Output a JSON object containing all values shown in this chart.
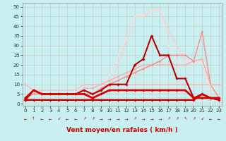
{
  "background_color": "#c8f0f0",
  "grid_color": "#aaaaaa",
  "xlabel": "Vent moyen/en rafales ( km/h )",
  "xlabel_color": "#cc0000",
  "xlabel_fontsize": 6.5,
  "xticks": [
    0,
    1,
    2,
    3,
    4,
    5,
    6,
    7,
    8,
    9,
    10,
    11,
    12,
    13,
    14,
    15,
    16,
    17,
    18,
    19,
    20,
    21,
    22,
    23
  ],
  "yticks": [
    0,
    5,
    10,
    15,
    20,
    25,
    30,
    35,
    40,
    45,
    50
  ],
  "ylim": [
    -1,
    52
  ],
  "xlim": [
    -0.3,
    23.3
  ],
  "series": [
    {
      "x": [
        0,
        1,
        2,
        3,
        4,
        5,
        6,
        7,
        8,
        9,
        10,
        11,
        12,
        13,
        14,
        15,
        16,
        17,
        18,
        19,
        20,
        21,
        22,
        23
      ],
      "y": [
        2,
        7,
        5,
        5,
        5,
        5,
        5,
        5,
        3,
        5,
        7,
        7,
        7,
        7,
        7,
        7,
        7,
        7,
        7,
        7,
        3,
        3,
        3,
        3
      ],
      "color": "#dd0000",
      "lw": 2.0,
      "marker": "D",
      "ms": 1.8,
      "zorder": 5
    },
    {
      "x": [
        0,
        1,
        2,
        3,
        4,
        5,
        6,
        7,
        8,
        9,
        10,
        11,
        12,
        13,
        14,
        15,
        16,
        17,
        18,
        19,
        20,
        21,
        22,
        23
      ],
      "y": [
        3,
        7,
        5,
        5,
        5,
        5,
        5,
        7,
        5,
        7,
        10,
        10,
        10,
        20,
        23,
        35,
        25,
        25,
        13,
        13,
        3,
        5,
        3,
        3
      ],
      "color": "#bb0000",
      "lw": 1.5,
      "marker": "D",
      "ms": 1.8,
      "zorder": 4
    },
    {
      "x": [
        0,
        1,
        2,
        3,
        4,
        5,
        6,
        7,
        8,
        9,
        10,
        11,
        12,
        13,
        14,
        15,
        16,
        17,
        18,
        19,
        20,
        21,
        22,
        23
      ],
      "y": [
        10,
        7,
        5,
        5,
        5,
        5,
        5,
        8,
        8,
        10,
        12,
        14,
        16,
        18,
        20,
        20,
        20,
        20,
        20,
        20,
        22,
        23,
        10,
        10
      ],
      "color": "#ffaaaa",
      "lw": 1.0,
      "marker": "D",
      "ms": 1.5,
      "zorder": 2
    },
    {
      "x": [
        0,
        1,
        2,
        3,
        4,
        5,
        6,
        7,
        8,
        9,
        10,
        11,
        12,
        13,
        14,
        15,
        16,
        17,
        18,
        19,
        20,
        21,
        22,
        23
      ],
      "y": [
        3,
        5,
        5,
        5,
        5,
        5,
        5,
        5,
        5,
        8,
        10,
        12,
        14,
        16,
        18,
        20,
        22,
        25,
        25,
        25,
        22,
        37,
        10,
        3
      ],
      "color": "#ff8888",
      "lw": 1.0,
      "marker": "D",
      "ms": 1.5,
      "zorder": 2
    },
    {
      "x": [
        0,
        1,
        2,
        3,
        4,
        5,
        6,
        7,
        8,
        9,
        10,
        11,
        12,
        13,
        14,
        15,
        16,
        17,
        18,
        19,
        20,
        21,
        22,
        23
      ],
      "y": [
        3,
        7,
        5,
        5,
        5,
        5,
        5,
        5,
        5,
        5,
        7,
        20,
        32,
        45,
        45,
        48,
        48,
        38,
        30,
        22,
        22,
        22,
        3,
        3
      ],
      "color": "#ffcccc",
      "lw": 1.0,
      "marker": "D",
      "ms": 1.5,
      "zorder": 1
    },
    {
      "x": [
        0,
        1,
        2,
        3,
        4,
        5,
        6,
        7,
        8,
        9,
        10,
        11,
        12,
        13,
        14,
        15,
        16,
        17,
        18,
        19,
        20,
        21,
        22,
        23
      ],
      "y": [
        3,
        7,
        5,
        5,
        5,
        5,
        5,
        5,
        5,
        8,
        15,
        25,
        33,
        45,
        46,
        48,
        48,
        30,
        22,
        22,
        22,
        22,
        3,
        3
      ],
      "color": "#ffdddd",
      "lw": 0.9,
      "marker": "D",
      "ms": 1.3,
      "zorder": 1
    },
    {
      "x": [
        0,
        1,
        2,
        3,
        4,
        5,
        6,
        7,
        8,
        9,
        10,
        11,
        12,
        13,
        14,
        15,
        16,
        17,
        18,
        19,
        20,
        21,
        22,
        23
      ],
      "y": [
        10,
        7,
        7,
        7,
        7,
        7,
        7,
        10,
        10,
        10,
        10,
        10,
        10,
        10,
        10,
        10,
        10,
        10,
        10,
        10,
        10,
        10,
        10,
        10
      ],
      "color": "#ffbbbb",
      "lw": 0.9,
      "marker": "D",
      "ms": 1.3,
      "zorder": 2
    },
    {
      "x": [
        0,
        1,
        2,
        3,
        4,
        5,
        6,
        7,
        8,
        9,
        10,
        11,
        12,
        13,
        14,
        15,
        16,
        17,
        18,
        19,
        20,
        21,
        22,
        23
      ],
      "y": [
        2,
        2,
        2,
        2,
        2,
        2,
        2,
        2,
        2,
        2,
        2,
        2,
        2,
        2,
        2,
        2,
        2,
        2,
        2,
        2,
        2,
        5,
        3,
        2
      ],
      "color": "#cc0000",
      "lw": 1.8,
      "marker": "D",
      "ms": 1.8,
      "zorder": 5
    }
  ],
  "wind_arrows": [
    "←",
    "↑",
    "←",
    "←",
    "↙",
    "←",
    "←",
    "↗",
    "↗",
    "→",
    "→",
    "→",
    "→",
    "↗",
    "→",
    "→",
    "→",
    "↗",
    "↗",
    "↖",
    "↗",
    "↙",
    "←",
    "←"
  ],
  "tick_fontsize": 5.0
}
